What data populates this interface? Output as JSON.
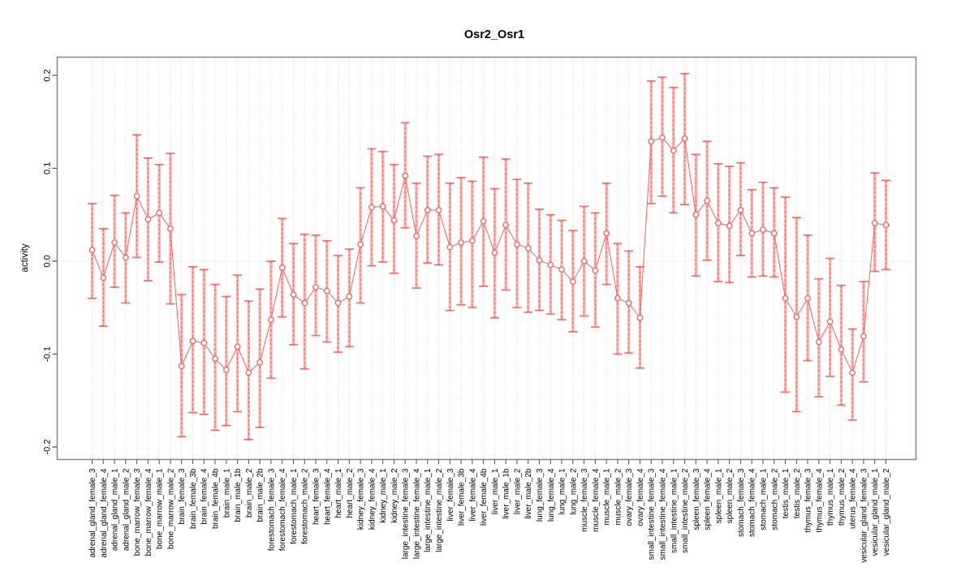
{
  "chart_data": {
    "type": "scatter",
    "title": "Osr2_Osr1",
    "ylabel": "activity",
    "xlabel": "",
    "legend": "none",
    "marker": "open-circle",
    "line_between_points": true,
    "error_bars": true,
    "grid": {
      "vertical_dotted_per_category": true,
      "horizontal_dotted_zero_line": true
    },
    "ylim": [
      -0.2135,
      0.2196
    ],
    "yticks": [
      -0.2,
      -0.1,
      0.0,
      0.1,
      0.2
    ],
    "colors": {
      "point": "#f4625f",
      "line": "#f4625f",
      "error_bar_fill": "#ffb3b0",
      "error_bar_core": "#ef5350",
      "gridline": "#d4d4d4",
      "box": "#8c8c8c",
      "tick": "#4d4d4d",
      "text": "#000000",
      "background": "#ffffff"
    },
    "categories": [
      "adrenal_gland_female_3",
      "adrenal_gland_female_4",
      "adrenal_gland_male_1",
      "adrenal_gland_male_2",
      "bone_marrow_female_3",
      "bone_marrow_female_4",
      "bone_marrow_male_1",
      "bone_marrow_male_2",
      "brain_female_3",
      "brain_female_3b",
      "brain_female_4",
      "brain_female_4b",
      "brain_male_1",
      "brain_male_1b",
      "brain_male_2",
      "brain_male_2b",
      "forestomach_female_3",
      "forestomach_female_4",
      "forestomach_male_1",
      "forestomach_male_2",
      "heart_female_3",
      "heart_female_4",
      "heart_male_1",
      "heart_male_2",
      "kidney_female_3",
      "kidney_female_4",
      "kidney_male_1",
      "kidney_male_2",
      "large_intestine_female_3",
      "large_intestine_female_4",
      "large_intestine_male_1",
      "large_intestine_male_2",
      "liver_female_3",
      "liver_female_3b",
      "liver_female_4",
      "liver_female_4b",
      "liver_male_1",
      "liver_male_1b",
      "liver_male_2",
      "liver_male_2b",
      "lung_female_3",
      "lung_female_4",
      "lung_male_1",
      "lung_male_2",
      "muscle_female_3",
      "muscle_female_4",
      "muscle_male_1",
      "muscle_male_2",
      "ovary_female_3",
      "ovary_female_4",
      "small_intestine_female_3",
      "small_intestine_female_4",
      "small_intestine_male_1",
      "small_intestine_male_2",
      "spleen_female_3",
      "spleen_female_4",
      "spleen_male_1",
      "spleen_male_2",
      "stomach_female_3",
      "stomach_female_4",
      "stomach_male_1",
      "stomach_male_2",
      "testis_male_1",
      "testis_male_2",
      "thymus_female_3",
      "thymus_female_4",
      "thymus_male_1",
      "thymus_male_2",
      "uterus_female_4",
      "vesicular_gland_female_3",
      "vesicular_gland_male_1",
      "vesicular_gland_male_2"
    ],
    "series": [
      {
        "name": "activity",
        "values": [
          0.012,
          -0.018,
          0.02,
          0.004,
          0.07,
          0.045,
          0.052,
          0.035,
          -0.113,
          -0.086,
          -0.088,
          -0.105,
          -0.117,
          -0.092,
          -0.12,
          -0.109,
          -0.063,
          -0.007,
          -0.036,
          -0.045,
          -0.028,
          -0.032,
          -0.045,
          -0.038,
          0.018,
          0.058,
          0.059,
          0.044,
          0.092,
          0.027,
          0.055,
          0.055,
          0.015,
          0.02,
          0.022,
          0.043,
          0.009,
          0.039,
          0.018,
          0.014,
          0.001,
          -0.004,
          -0.009,
          -0.022,
          0.0,
          -0.01,
          0.03,
          -0.04,
          -0.045,
          -0.061,
          0.129,
          0.133,
          0.119,
          0.132,
          0.05,
          0.065,
          0.041,
          0.038,
          0.055,
          0.03,
          0.034,
          0.03,
          -0.04,
          -0.06,
          -0.04,
          -0.087,
          -0.065,
          -0.095,
          -0.12,
          -0.081,
          0.041,
          0.039
        ],
        "error_low": [
          -0.04,
          -0.07,
          -0.028,
          -0.045,
          0.004,
          -0.021,
          -0.001,
          -0.046,
          -0.189,
          -0.163,
          -0.165,
          -0.182,
          -0.177,
          -0.162,
          -0.192,
          -0.179,
          -0.126,
          -0.06,
          -0.09,
          -0.116,
          -0.08,
          -0.087,
          -0.098,
          -0.092,
          -0.045,
          -0.005,
          -0.001,
          -0.013,
          0.036,
          -0.029,
          -0.002,
          -0.004,
          -0.053,
          -0.047,
          -0.05,
          -0.027,
          -0.061,
          -0.031,
          -0.05,
          -0.055,
          -0.053,
          -0.057,
          -0.063,
          -0.076,
          -0.059,
          -0.071,
          -0.025,
          -0.1,
          -0.099,
          -0.115,
          0.062,
          0.07,
          0.052,
          0.061,
          -0.016,
          0.001,
          -0.022,
          -0.023,
          0.006,
          -0.017,
          -0.016,
          -0.017,
          -0.141,
          -0.162,
          -0.107,
          -0.146,
          -0.124,
          -0.155,
          -0.171,
          -0.13,
          -0.011,
          -0.009
        ],
        "error_high": [
          0.062,
          0.035,
          0.071,
          0.052,
          0.136,
          0.111,
          0.104,
          0.116,
          -0.036,
          -0.006,
          -0.009,
          -0.025,
          -0.038,
          -0.015,
          -0.043,
          -0.03,
          0.0,
          0.046,
          0.019,
          0.029,
          0.028,
          0.022,
          0.006,
          0.013,
          0.079,
          0.121,
          0.118,
          0.104,
          0.149,
          0.084,
          0.113,
          0.115,
          0.084,
          0.09,
          0.086,
          0.112,
          0.078,
          0.11,
          0.088,
          0.084,
          0.056,
          0.05,
          0.044,
          0.033,
          0.059,
          0.052,
          0.084,
          0.019,
          0.011,
          -0.006,
          0.194,
          0.198,
          0.187,
          0.202,
          0.115,
          0.129,
          0.105,
          0.102,
          0.106,
          0.077,
          0.085,
          0.079,
          0.069,
          0.047,
          0.028,
          -0.019,
          0.003,
          -0.026,
          -0.073,
          -0.022,
          0.095,
          0.087
        ]
      }
    ]
  }
}
